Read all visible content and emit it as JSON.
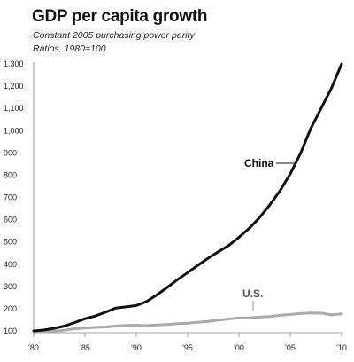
{
  "chart_data": {
    "type": "line",
    "title": "GDP per capita growth",
    "subtitle_lines": [
      "Constant 2005 purchasing power parity",
      "Ratios, 1980=100"
    ],
    "xlabel": "",
    "ylabel": "",
    "xlim": [
      1980,
      2010
    ],
    "ylim": [
      100,
      1300
    ],
    "y_ticks": [
      100,
      200,
      300,
      400,
      500,
      600,
      700,
      800,
      900,
      1000,
      1100,
      1200,
      1300
    ],
    "y_tick_labels": [
      "100",
      "200",
      "300",
      "400",
      "500",
      "600",
      "700",
      "800",
      "900",
      "1,000",
      "1,100",
      "1,200",
      "1,300"
    ],
    "x_ticks": [
      1980,
      1985,
      1990,
      1995,
      2000,
      2005,
      2010
    ],
    "x_tick_labels": [
      "'80",
      "'85",
      "'90",
      "'95",
      "'00",
      "'05",
      "'10"
    ],
    "grid": false,
    "legend": "none (direct labels)",
    "series": [
      {
        "name": "China",
        "color": "#111111",
        "x": [
          1980,
          1981,
          1982,
          1983,
          1984,
          1985,
          1986,
          1987,
          1988,
          1989,
          1990,
          1991,
          1992,
          1993,
          1994,
          1995,
          1996,
          1997,
          1998,
          1999,
          2000,
          2001,
          2002,
          2003,
          2004,
          2005,
          2006,
          2007,
          2008,
          2009,
          2010
        ],
        "values": [
          100,
          104,
          112,
          122,
          138,
          155,
          167,
          184,
          203,
          208,
          214,
          232,
          262,
          295,
          330,
          362,
          395,
          427,
          456,
          484,
          521,
          561,
          609,
          666,
          730,
          806,
          898,
          1010,
          1100,
          1190,
          1300
        ]
      },
      {
        "name": "U.S.",
        "color": "#aaaaaa",
        "x": [
          1980,
          1981,
          1982,
          1983,
          1984,
          1985,
          1986,
          1987,
          1988,
          1989,
          1990,
          1991,
          1992,
          1993,
          1994,
          1995,
          1996,
          1997,
          1998,
          1999,
          2000,
          2001,
          2002,
          2003,
          2004,
          2005,
          2006,
          2007,
          2008,
          2009,
          2010
        ],
        "values": [
          100,
          101,
          99,
          103,
          110,
          113,
          116,
          118,
          122,
          125,
          126,
          124,
          127,
          129,
          133,
          135,
          139,
          143,
          149,
          154,
          159,
          159,
          162,
          165,
          170,
          174,
          178,
          181,
          180,
          172,
          177
        ]
      }
    ]
  }
}
